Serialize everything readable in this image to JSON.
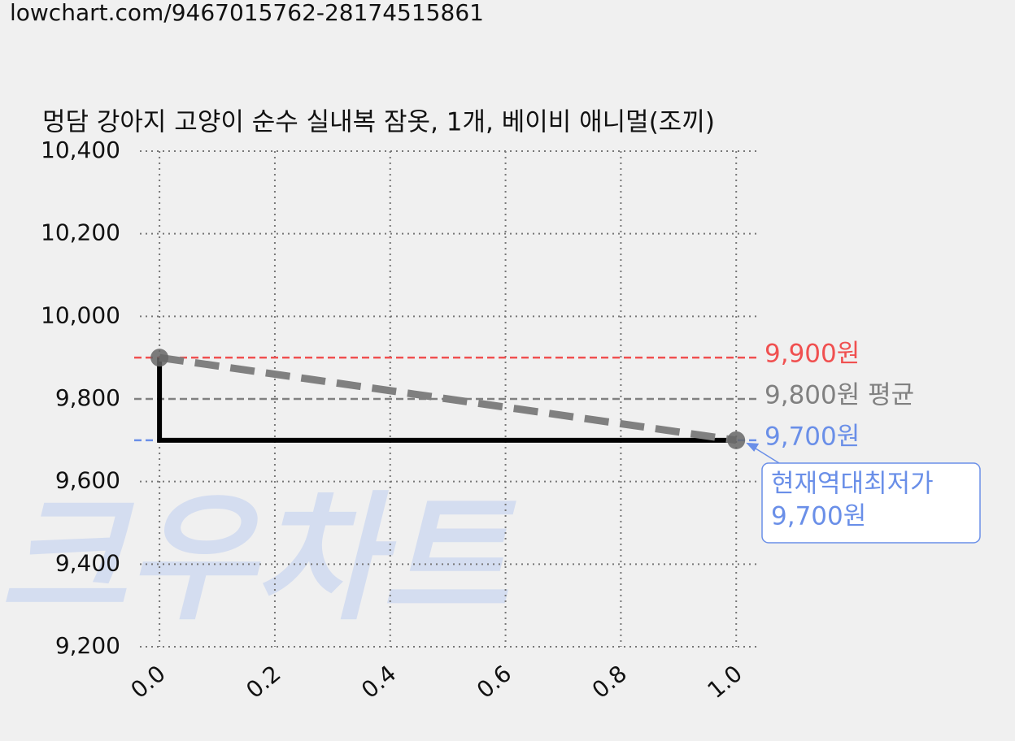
{
  "header": {
    "url": "lowchart.com/9467015762-28174515861"
  },
  "chart_data": {
    "type": "line",
    "title": "멍담 강아지 고양이 순수 실내복 잠옷, 1개, 베이비 애니멀(조끼)",
    "watermark": "크우차트",
    "xlim": [
      -0.034,
      1.042
    ],
    "xticks": [
      {
        "value": 0,
        "label": "0.0"
      },
      {
        "value": 0.2,
        "label": "0.2"
      },
      {
        "value": 0.4,
        "label": "0.4"
      },
      {
        "value": 0.6,
        "label": "0.6"
      },
      {
        "value": 0.8,
        "label": "0.8"
      },
      {
        "value": 1,
        "label": "1.0"
      }
    ],
    "ylim": [
      9200,
      10400
    ],
    "yticks": [
      {
        "value": 9200,
        "label": "9,200"
      },
      {
        "value": 9400,
        "label": "9,400"
      },
      {
        "value": 9600,
        "label": "9,600"
      },
      {
        "value": 9800,
        "label": "9,800"
      },
      {
        "value": 10000,
        "label": "10,000"
      },
      {
        "value": 10200,
        "label": "10,200"
      },
      {
        "value": 10400,
        "label": "10,400"
      }
    ],
    "grid": true,
    "series": [
      {
        "color": "#000000",
        "style": "solid",
        "x": [
          0,
          0,
          1
        ],
        "values": [
          9900,
          9700,
          9700
        ]
      },
      {
        "color": "#808080",
        "style": "dashed",
        "x": [
          0,
          1
        ],
        "values": [
          9900,
          9700
        ]
      },
      {
        "color": "#666666",
        "style": "points",
        "x": [
          0,
          1
        ],
        "values": [
          9900,
          9700
        ]
      }
    ],
    "reference_lines": [
      {
        "value": 9900,
        "label": "9,900원",
        "color": "#f05050"
      },
      {
        "value": 9800,
        "label": "9,800원 평균",
        "color": "#808080"
      },
      {
        "value": 9700,
        "label": "9,700원",
        "color": "#6a8fe8"
      }
    ],
    "annotation": {
      "x": 1,
      "value": 9700,
      "lines": [
        "현재역대최저가",
        "9,700원"
      ],
      "color": "#6a8fe8"
    }
  }
}
